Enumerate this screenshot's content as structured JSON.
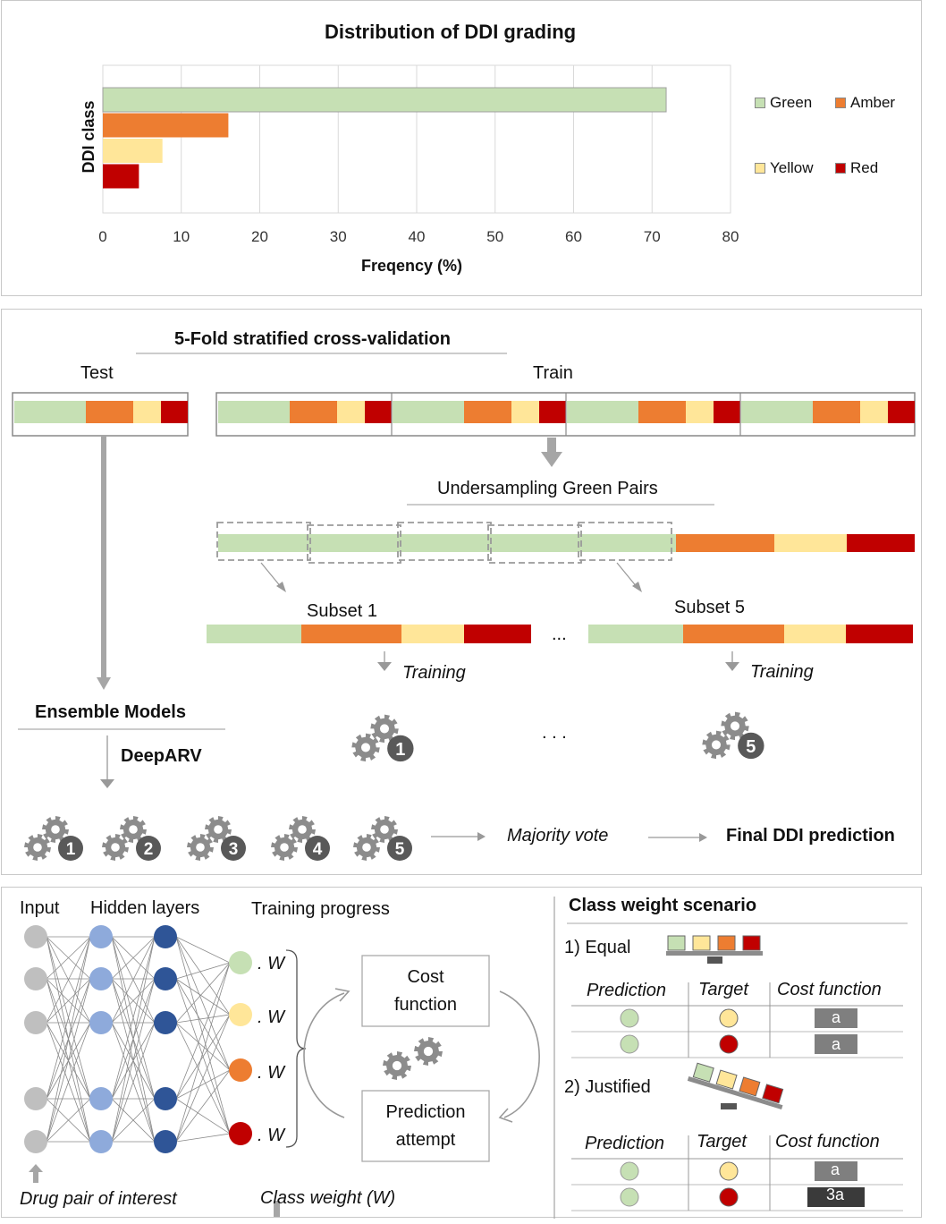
{
  "colors": {
    "green": "#c6e0b4",
    "amber": "#ed7d31",
    "yellow": "#ffe699",
    "red": "#c00000",
    "grey": "#a6a6a6",
    "gear": "#8c8c8c",
    "badge": "#595959",
    "node_grey": "#bfbfbf",
    "node_light_blue": "#8eaadb",
    "node_dark_blue": "#2f5597"
  },
  "chart_data": {
    "type": "bar",
    "orientation": "horizontal",
    "title": "Distribution of DDI grading",
    "xlabel": "Freqency (%)",
    "ylabel": "DDI class",
    "xlim": [
      0,
      80
    ],
    "xticks": [
      "0",
      "10",
      "20",
      "30",
      "40",
      "50",
      "60",
      "70",
      "80"
    ],
    "categories": [
      "Green",
      "Amber",
      "Yellow",
      "Red"
    ],
    "values": [
      71.8,
      16.0,
      7.6,
      4.6
    ],
    "legend": [
      "Green",
      "Amber",
      "Yellow",
      "Red"
    ],
    "legend_position": "right",
    "grid": "vertical"
  },
  "cv": {
    "title": "5-Fold stratified cross-validation",
    "test_label": "Test",
    "train_label": "Train",
    "undersampling_label": "Undersampling Green Pairs",
    "subset1_label": "Subset 1",
    "subset5_label": "Subset 5",
    "ellipsis": "...",
    "ellipsis_gears": ". . .",
    "training_label": "Training",
    "ensemble_label": "Ensemble Models",
    "deeparv_label": "DeepARV",
    "majority_vote": "Majority vote",
    "final_prediction": "Final DDI prediction",
    "gear_numbers": [
      "1",
      "2",
      "3",
      "4",
      "5"
    ],
    "subset_gear_numbers": [
      "1",
      "5"
    ]
  },
  "nn": {
    "input_label": "Input",
    "hidden_label": "Hidden layers",
    "progress_label": "Training progress",
    "weight_label": ". W",
    "cost_label_1": "Cost",
    "cost_label_2": "function",
    "prediction_label_1": "Prediction",
    "prediction_label_2": "attempt",
    "drug_pair_label": "Drug pair of interest",
    "class_weight_label": "Class weight (W)"
  },
  "cw": {
    "title": "Class weight scenario",
    "equal_label": "1) Equal",
    "justified_label": "2) Justified",
    "col_prediction": "Prediction",
    "col_target": "Target",
    "col_cost": "Cost function",
    "equal_costs": [
      "a",
      "a"
    ],
    "justified_costs": [
      "a",
      "3a"
    ]
  }
}
